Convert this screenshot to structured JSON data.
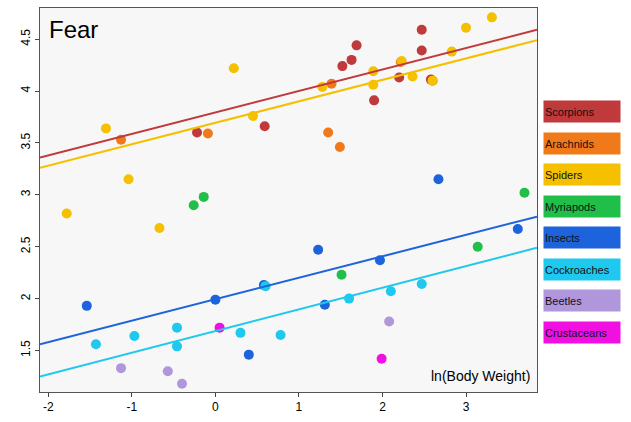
{
  "chart_data": {
    "type": "scatter",
    "title": "Fear",
    "x_label": "ln(Body Weight)",
    "xlim": [
      -2.1,
      3.85
    ],
    "ylim": [
      1.1,
      4.8
    ],
    "xticks": [
      -2,
      -1,
      0,
      1,
      2,
      3
    ],
    "yticks": [
      1.5,
      2,
      2.5,
      3,
      3.5,
      4,
      4.5
    ],
    "legend": "right",
    "series": [
      {
        "name": "Scorpions",
        "color": "#c0393b",
        "type": "scatter",
        "marker": "circle",
        "x": [
          -0.22,
          0.59,
          1.69,
          1.63,
          1.52,
          2.47,
          2.47,
          1.9,
          2.2,
          2.58
        ],
        "values": [
          3.6,
          3.66,
          4.44,
          4.3,
          4.24,
          4.59,
          4.39,
          3.91,
          4.13,
          4.11
        ]
      },
      {
        "name": "Arachnids",
        "color": "#f07a1a",
        "type": "scatter",
        "marker": "circle",
        "x": [
          -1.13,
          -0.09,
          1.35,
          1.49,
          1.39,
          2.22,
          2.6
        ],
        "values": [
          3.53,
          3.59,
          3.6,
          3.46,
          4.07,
          4.28,
          4.1
        ]
      },
      {
        "name": "Spiders",
        "color": "#f5c000",
        "type": "scatter",
        "marker": "circle",
        "x": [
          -1.78,
          -1.31,
          -1.04,
          -0.67,
          0.22,
          0.45,
          1.28,
          1.89,
          1.89,
          2.23,
          2.36,
          2.6,
          2.83,
          3.0,
          3.31
        ],
        "values": [
          2.82,
          3.64,
          3.15,
          2.68,
          4.22,
          3.76,
          4.04,
          4.19,
          4.06,
          4.29,
          4.14,
          4.1,
          4.38,
          4.61,
          4.71
        ]
      },
      {
        "name": "Myriapods",
        "color": "#1fbf4a",
        "type": "scatter",
        "marker": "circle",
        "x": [
          -0.26,
          -0.14,
          1.51,
          3.14,
          3.7
        ],
        "values": [
          2.9,
          2.98,
          2.23,
          2.5,
          3.02
        ]
      },
      {
        "name": "Insects",
        "color": "#1d63dc",
        "type": "scatter",
        "marker": "circle",
        "x": [
          -1.54,
          0.0,
          0.58,
          1.23,
          1.31,
          0.4,
          1.97,
          2.67,
          3.62
        ],
        "values": [
          1.93,
          1.99,
          2.13,
          2.47,
          1.94,
          1.46,
          2.37,
          3.15,
          2.67
        ]
      },
      {
        "name": "Cockroaches",
        "color": "#1ec8ee",
        "type": "scatter",
        "marker": "circle",
        "x": [
          -1.43,
          -0.97,
          -0.46,
          -0.46,
          0.3,
          0.78,
          1.6,
          2.1,
          2.47,
          0.6
        ],
        "values": [
          1.56,
          1.64,
          1.72,
          1.54,
          1.67,
          1.65,
          2.0,
          2.07,
          2.14,
          2.12
        ]
      },
      {
        "name": "Beetles",
        "color": "#b097dc",
        "type": "scatter",
        "marker": "circle",
        "x": [
          -1.13,
          -0.57,
          -0.4,
          2.08
        ],
        "values": [
          1.33,
          1.3,
          1.18,
          1.78
        ]
      },
      {
        "name": "Crustaceans",
        "color": "#f010e0",
        "type": "scatter",
        "marker": "circle",
        "x": [
          0.05,
          1.99
        ],
        "values": [
          1.72,
          1.42
        ]
      },
      {
        "color": "#c0393b",
        "type": "line",
        "line_style": "solid",
        "x": [
          -2.1,
          3.85
        ],
        "values": [
          3.36,
          4.59
        ]
      },
      {
        "color": "#f5c000",
        "type": "line",
        "line_style": "solid",
        "x": [
          -2.1,
          3.85
        ],
        "values": [
          3.26,
          4.49
        ]
      },
      {
        "color": "#1d63dc",
        "type": "line",
        "line_style": "solid",
        "x": [
          -2.1,
          3.85
        ],
        "values": [
          1.56,
          2.79
        ]
      },
      {
        "color": "#1ec8ee",
        "type": "line",
        "line_style": "solid",
        "x": [
          -2.1,
          3.85
        ],
        "values": [
          1.25,
          2.49
        ]
      }
    ]
  }
}
